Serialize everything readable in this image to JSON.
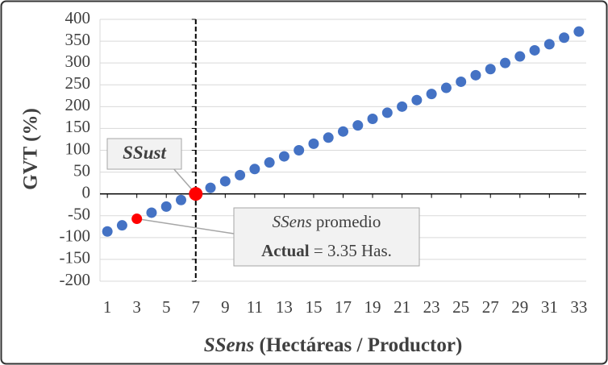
{
  "chart_data": {
    "type": "scatter",
    "y_label": "GVT (%)",
    "x_label_parts": [
      {
        "text": "SSens",
        "italic": true
      },
      {
        "text": " (Hectáreas / Productor)",
        "italic": false
      }
    ],
    "x": [
      1,
      2,
      3,
      4,
      5,
      6,
      7,
      8,
      9,
      10,
      11,
      12,
      13,
      14,
      15,
      16,
      17,
      18,
      19,
      20,
      21,
      22,
      23,
      24,
      25,
      26,
      27,
      28,
      29,
      30,
      31,
      32,
      33
    ],
    "values": [
      -86,
      -72,
      -57,
      -43,
      -29,
      -14,
      0,
      14,
      29,
      43,
      57,
      72,
      86,
      100,
      115,
      129,
      143,
      157,
      172,
      186,
      200,
      215,
      229,
      243,
      257,
      272,
      286,
      300,
      315,
      329,
      343,
      358,
      372
    ],
    "color": "#4472c4",
    "xlim": [
      0.5,
      33.5
    ],
    "xticks": [
      1,
      3,
      5,
      7,
      9,
      11,
      13,
      15,
      17,
      19,
      21,
      23,
      25,
      27,
      29,
      31,
      33
    ],
    "ylim": [
      -200,
      400
    ],
    "yticks": [
      -200,
      -150,
      -100,
      -50,
      0,
      50,
      100,
      150,
      200,
      250,
      300,
      350,
      400
    ],
    "grid": true,
    "vline": 7,
    "annotations": [
      {
        "point": 6,
        "color": "#ff0000",
        "lines": [
          [
            {
              "text": "SSust",
              "italic": true,
              "bold": true
            }
          ]
        ]
      },
      {
        "point": 2,
        "color": "#ff0000",
        "lines": [
          [
            {
              "text": "SSens",
              "italic": true,
              "bold": false
            },
            {
              "text": " promedio",
              "italic": false,
              "bold": false
            }
          ],
          [
            {
              "text": "Actual",
              "italic": false,
              "bold": true
            },
            {
              "text": " = 3.35 Has.",
              "italic": false,
              "bold": false
            }
          ]
        ]
      }
    ]
  }
}
